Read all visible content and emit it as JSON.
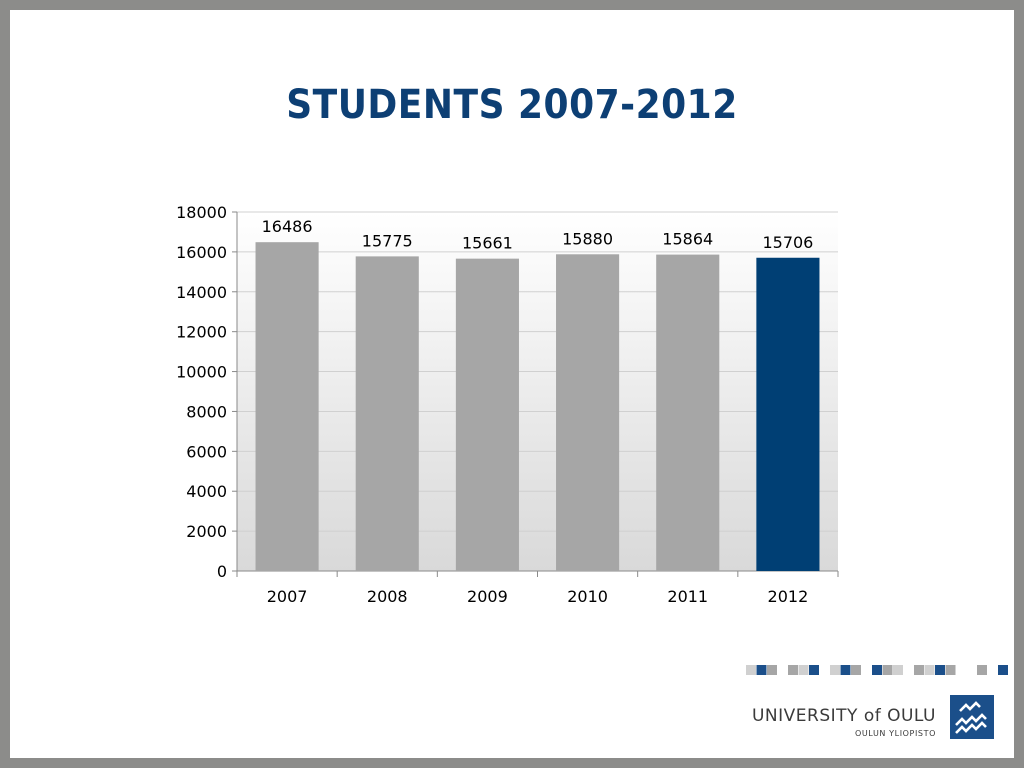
{
  "slide": {
    "title": "STUDENTS 2007-2012"
  },
  "chart_data": {
    "type": "bar",
    "categories": [
      "2007",
      "2008",
      "2009",
      "2010",
      "2011",
      "2012"
    ],
    "values": [
      16486,
      15775,
      15661,
      15880,
      15864,
      15706
    ],
    "data_labels": [
      "16486",
      "15775",
      "15661",
      "15880",
      "15864",
      "15706"
    ],
    "highlight_category": "2012",
    "title": "",
    "xlabel": "",
    "ylabel": "",
    "ylim": [
      0,
      18000
    ],
    "yticks": [
      0,
      2000,
      4000,
      6000,
      8000,
      10000,
      12000,
      14000,
      16000,
      18000
    ],
    "grid": true,
    "legend": "none",
    "colors": {
      "bar": "#a6a6a6",
      "highlight": "#003f74",
      "plot_bg_top": "#ffffff",
      "plot_bg_bottom": "#d9d9d9"
    }
  },
  "logo": {
    "name": "UNIVERSITY of OULU",
    "subtitle": "OULUN YLIOPISTO",
    "mark_color": "#1b4f8a"
  }
}
